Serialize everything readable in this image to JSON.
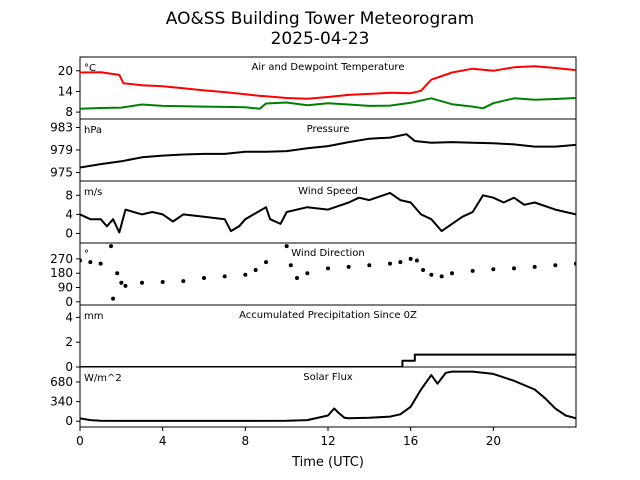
{
  "title": {
    "line1": "AO&SS Building Tower Meteorogram",
    "line2": "2025-04-23"
  },
  "xaxis": {
    "label": "Time (UTC)",
    "range": [
      0,
      24
    ],
    "ticks": [
      "0",
      "4",
      "8",
      "12",
      "16",
      "20"
    ]
  },
  "colors": {
    "air_temp": "#ff0000",
    "dewpoint": "#008000",
    "default_line": "#000000"
  },
  "chart_data": [
    {
      "type": "line",
      "title": "Air and Dewpoint Temperature",
      "unit": "°C",
      "ylim": [
        6,
        24
      ],
      "yticks": [
        8,
        14,
        20
      ],
      "series": [
        {
          "color": "#ff0000",
          "x": [
            0,
            1,
            1.9,
            2.1,
            3,
            4,
            5,
            6,
            7,
            8,
            8.7,
            9,
            10,
            11,
            12,
            13,
            14,
            15,
            16,
            16.5,
            17,
            18,
            19,
            20,
            21,
            22,
            23,
            24
          ],
          "y": [
            19.5,
            19.6,
            18.8,
            16.4,
            15.8,
            15.5,
            14.9,
            14.3,
            13.8,
            13.2,
            12.7,
            12.6,
            12.1,
            11.9,
            12.4,
            13.0,
            13.3,
            13.6,
            13.5,
            14.2,
            17.4,
            19.5,
            20.6,
            20.0,
            21.0,
            21.3,
            20.8,
            20.2
          ]
        },
        {
          "color": "#008000",
          "x": [
            0,
            1,
            2,
            3,
            4,
            5,
            6,
            7,
            8,
            8.7,
            9,
            10,
            11,
            12,
            13,
            14,
            15,
            16,
            17,
            18,
            19,
            19.5,
            20,
            21,
            22,
            23,
            24
          ],
          "y": [
            9.0,
            9.2,
            9.3,
            10.2,
            9.8,
            9.7,
            9.6,
            9.5,
            9.4,
            9.0,
            10.5,
            10.8,
            10.0,
            10.6,
            10.2,
            9.8,
            9.9,
            10.7,
            12.0,
            10.3,
            9.6,
            9.1,
            10.6,
            12.0,
            11.6,
            11.8,
            12.1
          ]
        }
      ]
    },
    {
      "type": "line",
      "title": "Pressure",
      "unit": "hPa",
      "ylim": [
        973.5,
        984.5
      ],
      "yticks": [
        975,
        979,
        983
      ],
      "series": [
        {
          "color": "#000000",
          "x": [
            0,
            1,
            2,
            3,
            4,
            5,
            6,
            7,
            8,
            9,
            10,
            11,
            12,
            13,
            14,
            15,
            15.8,
            16.2,
            17,
            18,
            19,
            20,
            21,
            22,
            23,
            24
          ],
          "y": [
            975.9,
            976.5,
            977.0,
            977.7,
            978.0,
            978.2,
            978.3,
            978.3,
            978.7,
            978.7,
            978.8,
            979.3,
            979.7,
            980.4,
            981.0,
            981.2,
            981.8,
            980.6,
            980.3,
            980.4,
            980.3,
            980.2,
            980.0,
            979.6,
            979.6,
            979.9
          ]
        }
      ]
    },
    {
      "type": "line",
      "title": "Wind Speed",
      "unit": "m/s",
      "ylim": [
        -2,
        11
      ],
      "yticks": [
        0,
        4,
        8
      ],
      "series": [
        {
          "color": "#000000",
          "x": [
            0,
            0.5,
            1,
            1.3,
            1.6,
            1.9,
            2.2,
            3,
            3.5,
            4,
            4.5,
            5,
            6,
            7,
            7.3,
            7.7,
            8,
            9,
            9.2,
            9.7,
            10,
            11,
            12,
            13,
            13.5,
            14,
            15,
            15.5,
            16,
            16.5,
            17,
            17.5,
            18,
            18.5,
            19,
            19.5,
            20,
            20.5,
            21,
            21.5,
            22,
            23,
            24
          ],
          "y": [
            4.0,
            3.0,
            3.0,
            1.5,
            3.0,
            0.2,
            5.0,
            4.0,
            4.5,
            4.0,
            2.5,
            4.0,
            3.5,
            3.0,
            0.5,
            1.5,
            3.0,
            5.5,
            3.0,
            2.0,
            4.5,
            5.5,
            5.0,
            6.5,
            7.5,
            7.0,
            8.5,
            7.0,
            6.5,
            4.0,
            3.0,
            0.5,
            2.0,
            3.5,
            4.5,
            8.0,
            7.5,
            6.5,
            7.5,
            6.0,
            6.5,
            5.0,
            4.0
          ]
        }
      ]
    },
    {
      "type": "scatter",
      "title": "Wind Direction",
      "unit": "°",
      "ylim": [
        -20,
        370
      ],
      "yticks": [
        0,
        90,
        180,
        270
      ],
      "series": [
        {
          "color": "#000000",
          "x": [
            0,
            0.5,
            1,
            1.5,
            1.6,
            1.8,
            2.0,
            2.2,
            3,
            4,
            5,
            6,
            7,
            8,
            8.5,
            9,
            10,
            10.2,
            10.5,
            11,
            12,
            13,
            14,
            15,
            15.5,
            16,
            16.3,
            16.6,
            17,
            17.5,
            18,
            19,
            20,
            21,
            22,
            23,
            24
          ],
          "y": [
            260,
            250,
            240,
            350,
            20,
            180,
            120,
            100,
            120,
            125,
            130,
            150,
            160,
            170,
            200,
            250,
            350,
            230,
            150,
            180,
            210,
            220,
            230,
            240,
            250,
            270,
            260,
            200,
            170,
            160,
            180,
            195,
            205,
            210,
            220,
            230,
            240
          ]
        }
      ]
    },
    {
      "type": "line",
      "title": "Accumulated Precipitation Since 0Z",
      "unit": "mm",
      "ylim": [
        0,
        5
      ],
      "yticks": [
        0,
        2,
        4
      ],
      "series": [
        {
          "color": "#000000",
          "x": [
            0,
            15.6,
            15.6,
            16.2,
            16.2,
            24
          ],
          "y": [
            0,
            0,
            0.5,
            0.5,
            1.0,
            1.0
          ]
        }
      ]
    },
    {
      "type": "line",
      "title": "Solar Flux",
      "unit": "W/m^2",
      "ylim": [
        -100,
        940
      ],
      "yticks": [
        0,
        340,
        680
      ],
      "series": [
        {
          "color": "#000000",
          "x": [
            0,
            0.5,
            1,
            2,
            4,
            6,
            8,
            10,
            11,
            12,
            12.3,
            12.5,
            12.8,
            13,
            14,
            15,
            15.5,
            16,
            16.5,
            17,
            17.3,
            17.7,
            18,
            19,
            20,
            21,
            22,
            22.5,
            23,
            23.5,
            24
          ],
          "y": [
            50,
            20,
            10,
            5,
            5,
            5,
            5,
            10,
            20,
            100,
            220,
            150,
            60,
            50,
            60,
            80,
            120,
            250,
            550,
            800,
            650,
            840,
            860,
            860,
            820,
            700,
            550,
            400,
            220,
            100,
            50
          ]
        }
      ]
    }
  ]
}
